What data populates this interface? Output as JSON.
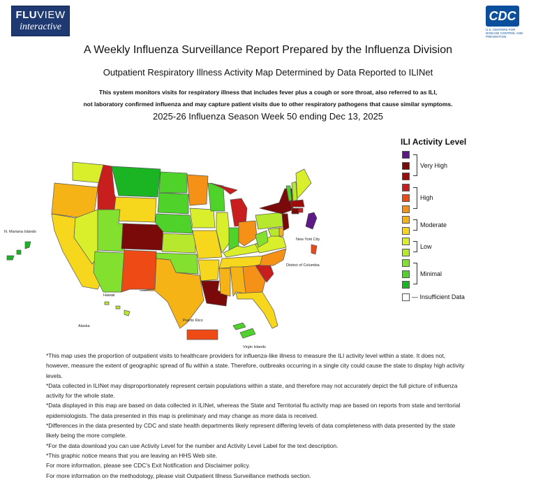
{
  "header": {
    "fluview_logo_line1_bold": "FLU",
    "fluview_logo_line1_rest": "VIEW",
    "fluview_logo_line2": "interactive",
    "cdc_logo_text": "CDC",
    "cdc_logo_sub": "U.S. CENTERS FOR DISEASE CONTROL AND PREVENTION"
  },
  "titles": {
    "main": "A Weekly Influenza Surveillance Report Prepared by the Influenza Division",
    "subtitle": "Outpatient Respiratory Illness Activity Map Determined by Data Reported to ILINet",
    "description_line1": "This system monitors visits for respiratory illness that includes fever plus a cough or sore throat, also referred to as ILI,",
    "description_line2": "not laboratory confirmed influenza and may capture patient visits due to other respiratory pathogens that cause similar symptoms.",
    "season": "2025-26 Influenza Season Week 50 ending Dec 13, 2025"
  },
  "map": {
    "labels": {
      "mariana": "N. Mariana Islands",
      "nyc": "New York City",
      "dc": "District of Columbia",
      "hawaii": "Hawaii",
      "alaska": "Alaska",
      "puerto_rico": "Puerto Rico",
      "virgin_islands": "Virgin Islands"
    }
  },
  "legend": {
    "title": "ILI Activity Level",
    "levels": [
      {
        "level": 13,
        "color": "#5b1a86"
      },
      {
        "level": 12,
        "color": "#7a0a0a"
      },
      {
        "level": 11,
        "color": "#9e0b0b"
      },
      {
        "level": 10,
        "color": "#c81e1e"
      },
      {
        "level": 9,
        "color": "#ee4a16"
      },
      {
        "level": 8,
        "color": "#f49116"
      },
      {
        "level": 7,
        "color": "#f6b315"
      },
      {
        "level": 6,
        "color": "#f7d71e"
      },
      {
        "level": 5,
        "color": "#d9ef2b"
      },
      {
        "level": 4,
        "color": "#b7e82d"
      },
      {
        "level": 3,
        "color": "#84e02f"
      },
      {
        "level": 2,
        "color": "#4fd32b"
      },
      {
        "level": 1,
        "color": "#1bb523"
      }
    ],
    "groups": {
      "very_high": "Very High",
      "high": "High",
      "moderate": "Moderate",
      "low": "Low",
      "minimal": "Minimal"
    },
    "insufficient": {
      "label": "— Insufficient Data",
      "color": "#ffffff"
    }
  },
  "notes": [
    "*This map uses the proportion of outpatient visits to healthcare providers for influenza-like illness to measure the ILI activity level within a state. It does not, however, measure the extent of geographic spread of flu within a state. Therefore, outbreaks occurring in a single city could cause the state to display high activity levels.",
    "*Data collected in ILINet may disproportionately represent certain populations within a state, and therefore may not accurately depict the full picture of influenza activity for the whole state.",
    "*Data displayed in this map are based on data collected in ILINet, whereas the State and Territorial flu activity map are based on reports from state and territorial epidemiologists. The data presented in this map is preliminary and may change as more data is received.",
    "*Differences in the data presented by CDC and state health departments likely represent differing levels of data completeness with data presented by the state likely being the more complete.",
    "*For the data download you can use Activity Level for the number and Activity Level Label for the text description.",
    "*This graphic notice means that you are leaving an HHS Web site.",
    "For more information, please see CDC's Exit Notification and Disclaimer policy.",
    "For more information on the methodology, please visit Outpatient Illness Surveillance methods section."
  ]
}
